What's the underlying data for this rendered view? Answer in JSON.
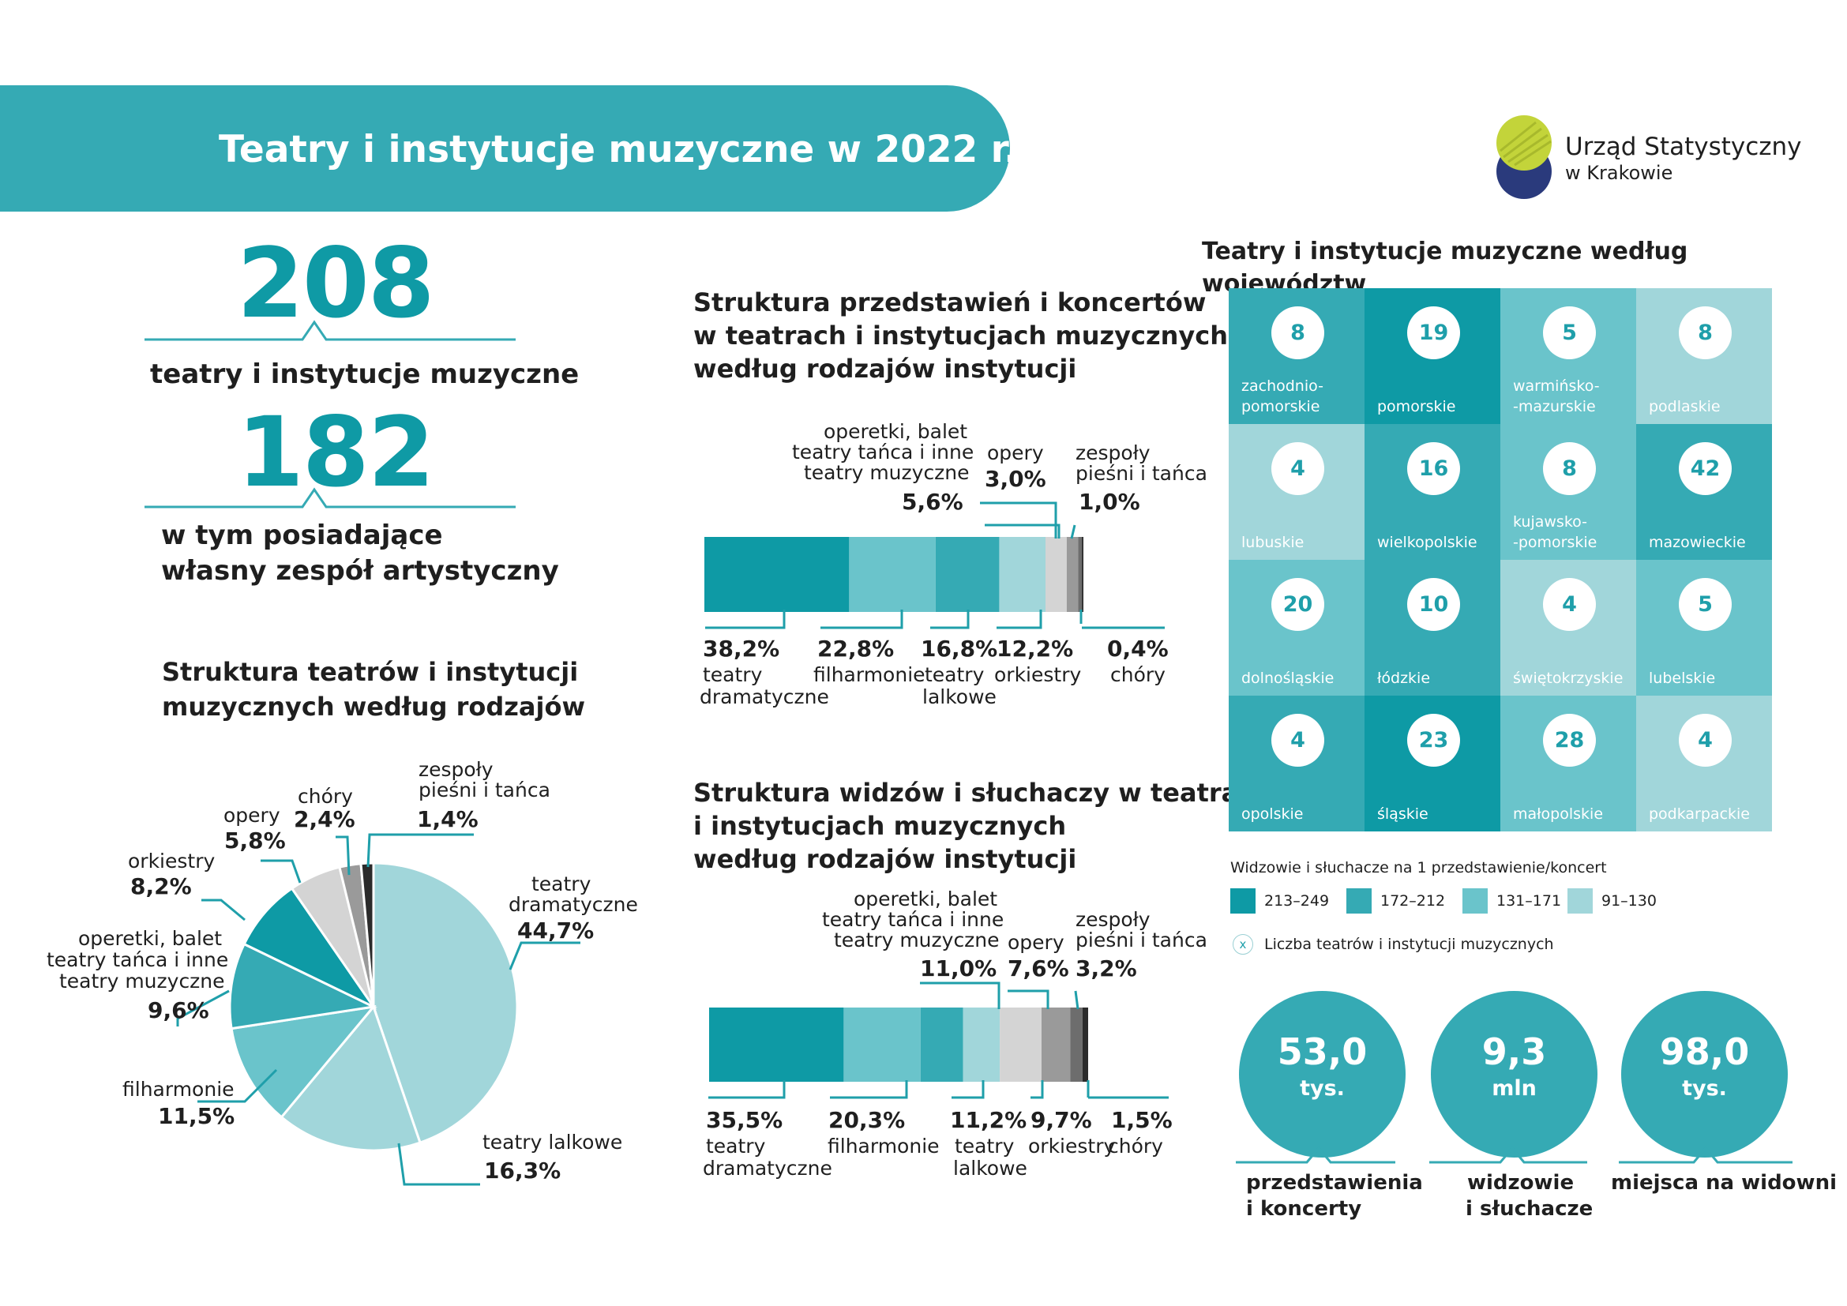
{
  "header": {
    "title": "Teatry i instytucje muzyczne w 2022 r.",
    "logo_line1": "Urząd Statystyczny",
    "logo_line2": "w Krakowie"
  },
  "stats": {
    "total_value": "208",
    "total_label": "teatry i instytucje muzyczne",
    "own_value": "182",
    "own_label_line1": "w tym posiadające",
    "own_label_line2": "własny zespół artystyczny"
  },
  "colors": {
    "teal_dark": "#0e9aa5",
    "teal_mid": "#35aab4",
    "teal_light": "#6ac4cb",
    "teal_pale": "#a1d6da",
    "gray_light": "#d4d4d4",
    "gray_mid": "#9a9a9a",
    "gray_dark": "#2b2b2b"
  },
  "chart_data": [
    {
      "type": "pie",
      "title": "Struktura teatrów i instytucji muzycznych według rodzajów",
      "title_line1": "Struktura teatrów i instytucji",
      "title_line2": "muzycznych według rodzajów",
      "slices": [
        {
          "name": "teatry dramatyczne",
          "value": 44.7,
          "label": "44,7%"
        },
        {
          "name": "teatry lalkowe",
          "value": 16.3,
          "label": "16,3%"
        },
        {
          "name": "filharmonie",
          "value": 11.5,
          "label": "11,5%"
        },
        {
          "name": "operetki, balet teatry tańca i inne teatry muzyczne",
          "value": 9.6,
          "label": "9,6%"
        },
        {
          "name": "orkiestry",
          "value": 8.2,
          "label": "8,2%"
        },
        {
          "name": "opery",
          "value": 5.8,
          "label": "5,8%"
        },
        {
          "name": "chóry",
          "value": 2.4,
          "label": "2,4%"
        },
        {
          "name": "zespoły pieśni i tańca",
          "value": 1.4,
          "label": "1,4%"
        }
      ]
    },
    {
      "type": "bar",
      "stacked": true,
      "title": "Struktura przedstawień i koncertów w teatrach i instytucjach muzycznych według rodzajów instytucji",
      "title_line1": "Struktura przedstawień i koncertów",
      "title_line2": "w teatrach i instytucjach muzycznych",
      "title_line3": "według rodzajów instytucji",
      "segments": [
        {
          "name": "teatry dramatyczne",
          "value": 38.2,
          "label": "38,2%"
        },
        {
          "name": "filharmonie",
          "value": 22.8,
          "label": "22,8%"
        },
        {
          "name": "teatry lalkowe",
          "value": 16.8,
          "label": "16,8%"
        },
        {
          "name": "orkiestry",
          "value": 12.2,
          "label": "12,2%"
        },
        {
          "name": "operetki, balet teatry tańca i inne teatry muzyczne",
          "value": 5.6,
          "label": "5,6%"
        },
        {
          "name": "opery",
          "value": 3.0,
          "label": "3,0%"
        },
        {
          "name": "zespoły pieśni i tańca",
          "value": 1.0,
          "label": "1,0%"
        },
        {
          "name": "chóry",
          "value": 0.4,
          "label": "0,4%"
        }
      ]
    },
    {
      "type": "bar",
      "stacked": true,
      "title": "Struktura widzów i słuchaczy w teatrach i instytucjach muzycznych według rodzajów instytucji",
      "title_line1": "Struktura widzów i słuchaczy w teatrach",
      "title_line2": "i instytucjach muzycznych",
      "title_line3": "według rodzajów instytucji",
      "segments": [
        {
          "name": "teatry dramatyczne",
          "value": 35.5,
          "label": "35,5%"
        },
        {
          "name": "filharmonie",
          "value": 20.3,
          "label": "20,3%"
        },
        {
          "name": "teatry lalkowe",
          "value": 11.2,
          "label": "11,2%"
        },
        {
          "name": "orkiestry",
          "value": 9.7,
          "label": "9,7%"
        },
        {
          "name": "operetki, balet teatry tańca i inne teatry muzyczne",
          "value": 11.0,
          "label": "11,0%"
        },
        {
          "name": "opery",
          "value": 7.6,
          "label": "7,6%"
        },
        {
          "name": "zespoły pieśni i tańca",
          "value": 3.2,
          "label": "3,2%"
        },
        {
          "name": "chóry",
          "value": 1.5,
          "label": "1,5%"
        }
      ]
    },
    {
      "type": "heatmap",
      "title": "Teatry i instytucje muzyczne według województw",
      "legend_title": "Widzowie i słuchacze na 1 przedstawienie/koncert",
      "legend": [
        {
          "range": "213–249",
          "color": "#0e9aa5"
        },
        {
          "range": "172–212",
          "color": "#35aab4"
        },
        {
          "range": "131–171",
          "color": "#6ac4cb"
        },
        {
          "range": "91–130",
          "color": "#a1d6da"
        }
      ],
      "badge_legend_symbol": "x",
      "badge_legend_text": "Liczba teatrów i instytucji muzycznych",
      "cells": [
        {
          "name_line1": "zachodnio-",
          "name_line2": "pomorskie",
          "count": 8,
          "class": 2
        },
        {
          "name_line1": "",
          "name_line2": "pomorskie",
          "count": 19,
          "class": 1
        },
        {
          "name_line1": "warmińsko-",
          "name_line2": "-mazurskie",
          "count": 5,
          "class": 3
        },
        {
          "name_line1": "",
          "name_line2": "podlaskie",
          "count": 8,
          "class": 4
        },
        {
          "name_line1": "",
          "name_line2": "lubuskie",
          "count": 4,
          "class": 4
        },
        {
          "name_line1": "",
          "name_line2": "wielkopolskie",
          "count": 16,
          "class": 2
        },
        {
          "name_line1": "kujawsko-",
          "name_line2": "-pomorskie",
          "count": 8,
          "class": 3
        },
        {
          "name_line1": "",
          "name_line2": "mazowieckie",
          "count": 42,
          "class": 2
        },
        {
          "name_line1": "",
          "name_line2": "dolnośląskie",
          "count": 20,
          "class": 3
        },
        {
          "name_line1": "",
          "name_line2": "łódzkie",
          "count": 10,
          "class": 2
        },
        {
          "name_line1": "",
          "name_line2": "świętokrzyskie",
          "count": 4,
          "class": 4
        },
        {
          "name_line1": "",
          "name_line2": "lubelskie",
          "count": 5,
          "class": 3
        },
        {
          "name_line1": "",
          "name_line2": "opolskie",
          "count": 4,
          "class": 2
        },
        {
          "name_line1": "",
          "name_line2": "śląskie",
          "count": 23,
          "class": 1
        },
        {
          "name_line1": "",
          "name_line2": "małopolskie",
          "count": 28,
          "class": 3
        },
        {
          "name_line1": "",
          "name_line2": "podkarpackie",
          "count": 4,
          "class": 4
        }
      ]
    }
  ],
  "pie_labels": {
    "dram_l1": "teatry",
    "dram_l2": "dramatyczne",
    "lalk": "teatry lalkowe",
    "filh": "filharmonie",
    "oper_l1": "operetki, balet",
    "oper_l2": "teatry tańca i inne",
    "oper_l3": "teatry muzyczne",
    "orki": "orkiestry",
    "opery": "opery",
    "chory": "chóry",
    "zesp_l1": "zespoły",
    "zesp_l2": "pieśni i tańca"
  },
  "bar_labels": {
    "oper_l1": "operetki, balet",
    "oper_l2": "teatry tańca i inne",
    "oper_l3": "teatry muzyczne",
    "opery": "opery",
    "zesp_l1": "zespoły",
    "zesp_l2": "pieśni i tańca",
    "dram_l1": "teatry",
    "dram_l2": "dramatyczne",
    "filh": "filharmonie",
    "lalk_l1": "teatry",
    "lalk_l2": "lalkowe",
    "orki": "orkiestry",
    "chory": "chóry"
  },
  "summary": [
    {
      "value": "53,0",
      "unit": "tys.",
      "caption_l1": "przedstawienia",
      "caption_l2": "i koncerty"
    },
    {
      "value": "9,3",
      "unit": "mln",
      "caption_l1": "widzowie",
      "caption_l2": "i słuchacze"
    },
    {
      "value": "98,0",
      "unit": "tys.",
      "caption_l1": "miejsca na widowni",
      "caption_l2": ""
    }
  ]
}
